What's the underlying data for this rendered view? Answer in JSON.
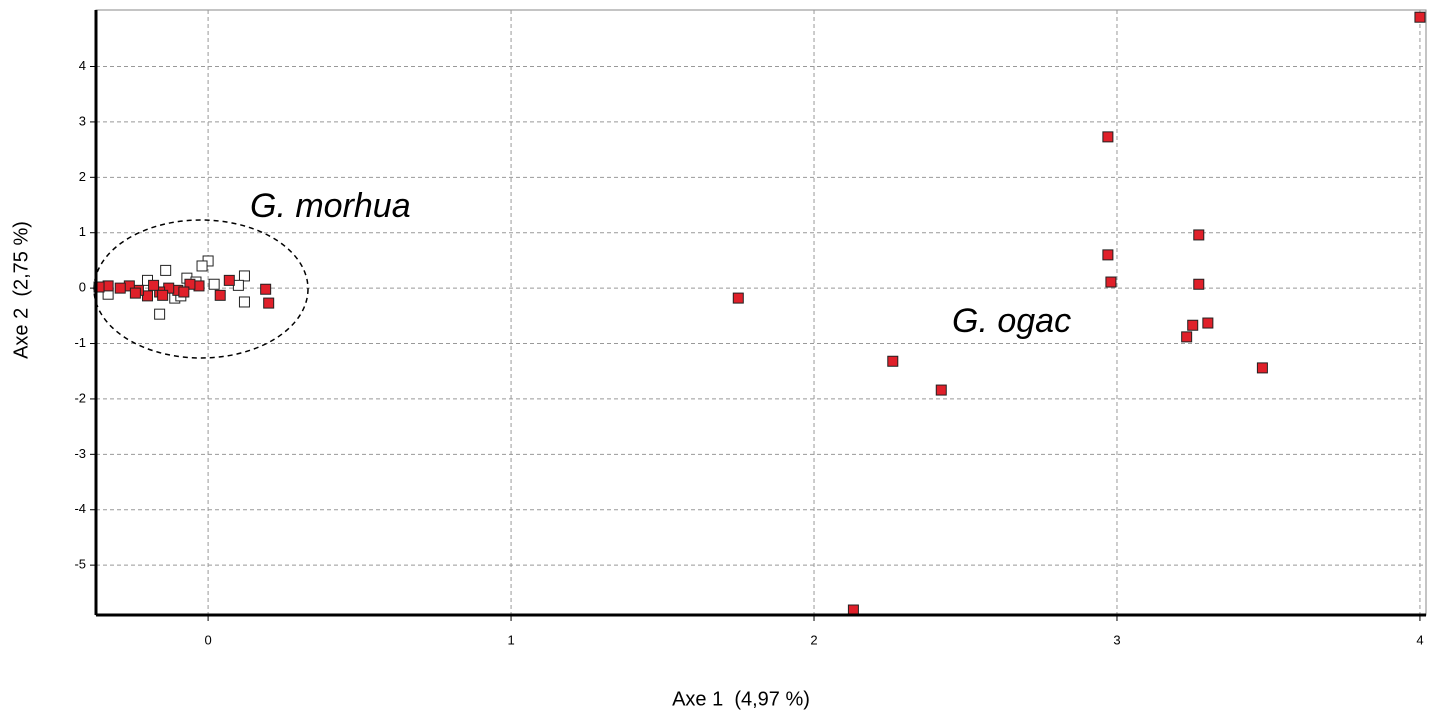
{
  "chart_data": {
    "type": "scatter",
    "xlabel": "Axe 1  (4,97 %)",
    "ylabel": "Axe 2  (2,75 %)",
    "xlim": [
      -0.37,
      4.02
    ],
    "ylim": [
      -5.9,
      5.02
    ],
    "xticks": [
      0,
      1,
      2,
      3,
      4
    ],
    "yticks": [
      -5,
      -4,
      -3,
      -2,
      -1,
      0,
      1,
      2,
      3,
      4
    ],
    "grid": true,
    "annotations": [
      "G. morhua",
      "G. ogac"
    ],
    "series": [
      {
        "color": "#ffffff",
        "x": [
          0.0,
          -0.02,
          0.12,
          0.12,
          0.1,
          0.02,
          -0.14,
          -0.16,
          -0.33,
          -0.11,
          -0.07,
          -0.2,
          -0.04,
          -0.09
        ],
        "y": [
          0.49,
          0.4,
          0.22,
          -0.25,
          0.05,
          0.07,
          0.32,
          -0.47,
          -0.11,
          -0.18,
          0.18,
          0.14,
          0.11,
          -0.14
        ]
      },
      {
        "color": "#e0202a",
        "x": [
          4.0,
          2.97,
          2.97,
          2.98,
          3.27,
          3.27,
          3.25,
          3.3,
          3.23,
          3.48,
          1.75,
          2.26,
          2.42,
          2.13,
          0.19,
          0.2,
          0.07,
          0.04,
          -0.03,
          -0.06,
          -0.1,
          -0.13,
          -0.16,
          -0.2,
          -0.23,
          -0.26,
          -0.29,
          -0.33,
          -0.36,
          -0.24,
          -0.18,
          -0.15,
          -0.08
        ],
        "y": [
          4.89,
          2.73,
          0.6,
          0.11,
          0.96,
          0.07,
          -0.67,
          -0.63,
          -0.88,
          -1.44,
          -0.18,
          -1.32,
          -1.84,
          -5.81,
          -0.02,
          -0.27,
          0.14,
          -0.13,
          0.04,
          0.07,
          -0.04,
          0.0,
          -0.07,
          -0.14,
          -0.04,
          0.04,
          0.0,
          0.04,
          0.02,
          -0.09,
          0.05,
          -0.13,
          -0.07
        ]
      }
    ]
  }
}
